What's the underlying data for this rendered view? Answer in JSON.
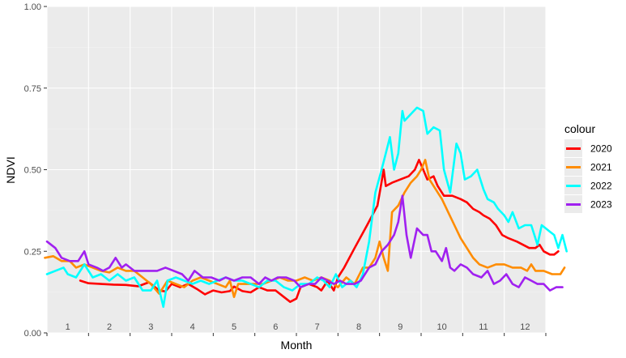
{
  "chart_data": {
    "type": "line",
    "xlabel": "Month",
    "ylabel": "NDVI",
    "xlim": [
      0,
      12
    ],
    "ylim": [
      0,
      1
    ],
    "y_ticks": [
      0,
      0.25,
      0.5,
      0.75,
      1
    ],
    "y_tick_labels": [
      "0.00",
      "0.25",
      "0.50",
      "0.75",
      "1.00"
    ],
    "month_labels": [
      "1",
      "2",
      "3",
      "4",
      "5",
      "6",
      "7",
      "8",
      "9",
      "10",
      "11",
      "12"
    ],
    "legend": {
      "title": "colour",
      "position": "right"
    },
    "grid": true,
    "series": [
      {
        "name": "2020",
        "color": "#ff0000",
        "points": [
          [
            0.8,
            0.16
          ],
          [
            1.0,
            0.152
          ],
          [
            1.3,
            0.15
          ],
          [
            1.6,
            0.148
          ],
          [
            1.9,
            0.147
          ],
          [
            2.2,
            0.143
          ],
          [
            2.45,
            0.155
          ],
          [
            2.7,
            0.13
          ],
          [
            2.85,
            0.127
          ],
          [
            3.0,
            0.15
          ],
          [
            3.2,
            0.14
          ],
          [
            3.4,
            0.15
          ],
          [
            3.6,
            0.135
          ],
          [
            3.8,
            0.118
          ],
          [
            4.0,
            0.13
          ],
          [
            4.2,
            0.124
          ],
          [
            4.4,
            0.128
          ],
          [
            4.5,
            0.142
          ],
          [
            4.7,
            0.128
          ],
          [
            4.9,
            0.124
          ],
          [
            5.1,
            0.14
          ],
          [
            5.3,
            0.13
          ],
          [
            5.5,
            0.13
          ],
          [
            5.7,
            0.11
          ],
          [
            5.85,
            0.095
          ],
          [
            6.0,
            0.105
          ],
          [
            6.1,
            0.14
          ],
          [
            6.3,
            0.15
          ],
          [
            6.5,
            0.14
          ],
          [
            6.6,
            0.13
          ],
          [
            6.75,
            0.16
          ],
          [
            6.9,
            0.13
          ],
          [
            7.0,
            0.17
          ],
          [
            7.15,
            0.2
          ],
          [
            7.4,
            0.26
          ],
          [
            7.7,
            0.33
          ],
          [
            7.95,
            0.39
          ],
          [
            8.1,
            0.5
          ],
          [
            8.15,
            0.45
          ],
          [
            8.3,
            0.46
          ],
          [
            8.5,
            0.47
          ],
          [
            8.7,
            0.48
          ],
          [
            8.85,
            0.5
          ],
          [
            8.95,
            0.53
          ],
          [
            9.05,
            0.5
          ],
          [
            9.15,
            0.47
          ],
          [
            9.3,
            0.48
          ],
          [
            9.4,
            0.45
          ],
          [
            9.55,
            0.42
          ],
          [
            9.75,
            0.42
          ],
          [
            9.95,
            0.41
          ],
          [
            10.1,
            0.4
          ],
          [
            10.25,
            0.38
          ],
          [
            10.4,
            0.37
          ],
          [
            10.5,
            0.36
          ],
          [
            10.65,
            0.35
          ],
          [
            10.8,
            0.33
          ],
          [
            10.95,
            0.3
          ],
          [
            11.1,
            0.29
          ],
          [
            11.3,
            0.28
          ],
          [
            11.45,
            0.27
          ],
          [
            11.6,
            0.26
          ],
          [
            11.75,
            0.26
          ],
          [
            11.85,
            0.27
          ],
          [
            11.95,
            0.25
          ],
          [
            12.1,
            0.24
          ],
          [
            12.2,
            0.24
          ],
          [
            12.3,
            0.25
          ]
        ]
      },
      {
        "name": "2021",
        "color": "#ff8c00",
        "points": [
          [
            -0.05,
            0.23
          ],
          [
            0.15,
            0.235
          ],
          [
            0.35,
            0.22
          ],
          [
            0.55,
            0.22
          ],
          [
            0.7,
            0.2
          ],
          [
            0.9,
            0.21
          ],
          [
            1.1,
            0.2
          ],
          [
            1.3,
            0.19
          ],
          [
            1.5,
            0.185
          ],
          [
            1.7,
            0.2
          ],
          [
            1.9,
            0.19
          ],
          [
            2.1,
            0.19
          ],
          [
            2.3,
            0.17
          ],
          [
            2.5,
            0.15
          ],
          [
            2.7,
            0.12
          ],
          [
            2.9,
            0.16
          ],
          [
            3.1,
            0.15
          ],
          [
            3.3,
            0.14
          ],
          [
            3.5,
            0.16
          ],
          [
            3.7,
            0.17
          ],
          [
            3.9,
            0.16
          ],
          [
            4.1,
            0.15
          ],
          [
            4.3,
            0.14
          ],
          [
            4.4,
            0.16
          ],
          [
            4.5,
            0.11
          ],
          [
            4.6,
            0.15
          ],
          [
            4.8,
            0.15
          ],
          [
            5.0,
            0.15
          ],
          [
            5.2,
            0.15
          ],
          [
            5.4,
            0.16
          ],
          [
            5.6,
            0.17
          ],
          [
            5.8,
            0.16
          ],
          [
            6.0,
            0.16
          ],
          [
            6.2,
            0.17
          ],
          [
            6.4,
            0.16
          ],
          [
            6.6,
            0.17
          ],
          [
            6.8,
            0.16
          ],
          [
            7.0,
            0.14
          ],
          [
            7.2,
            0.17
          ],
          [
            7.4,
            0.15
          ],
          [
            7.6,
            0.2
          ],
          [
            7.75,
            0.2
          ],
          [
            7.9,
            0.23
          ],
          [
            8.0,
            0.28
          ],
          [
            8.1,
            0.23
          ],
          [
            8.2,
            0.19
          ],
          [
            8.3,
            0.37
          ],
          [
            8.45,
            0.39
          ],
          [
            8.6,
            0.43
          ],
          [
            8.75,
            0.46
          ],
          [
            8.9,
            0.48
          ],
          [
            9.0,
            0.5
          ],
          [
            9.1,
            0.53
          ],
          [
            9.2,
            0.47
          ],
          [
            9.35,
            0.44
          ],
          [
            9.5,
            0.41
          ],
          [
            9.65,
            0.37
          ],
          [
            9.8,
            0.33
          ],
          [
            9.95,
            0.29
          ],
          [
            10.1,
            0.26
          ],
          [
            10.25,
            0.23
          ],
          [
            10.4,
            0.21
          ],
          [
            10.6,
            0.2
          ],
          [
            10.8,
            0.21
          ],
          [
            11.0,
            0.21
          ],
          [
            11.2,
            0.2
          ],
          [
            11.4,
            0.2
          ],
          [
            11.55,
            0.19
          ],
          [
            11.65,
            0.21
          ],
          [
            11.75,
            0.19
          ],
          [
            11.95,
            0.19
          ],
          [
            12.15,
            0.18
          ],
          [
            12.35,
            0.18
          ],
          [
            12.45,
            0.2
          ]
        ]
      },
      {
        "name": "2022",
        "color": "#00ffff",
        "points": [
          [
            0.0,
            0.18
          ],
          [
            0.2,
            0.19
          ],
          [
            0.4,
            0.2
          ],
          [
            0.5,
            0.18
          ],
          [
            0.7,
            0.17
          ],
          [
            0.9,
            0.21
          ],
          [
            1.1,
            0.17
          ],
          [
            1.3,
            0.18
          ],
          [
            1.5,
            0.16
          ],
          [
            1.7,
            0.18
          ],
          [
            1.9,
            0.16
          ],
          [
            2.1,
            0.17
          ],
          [
            2.3,
            0.13
          ],
          [
            2.5,
            0.13
          ],
          [
            2.65,
            0.16
          ],
          [
            2.8,
            0.08
          ],
          [
            2.9,
            0.16
          ],
          [
            3.1,
            0.17
          ],
          [
            3.3,
            0.16
          ],
          [
            3.5,
            0.15
          ],
          [
            3.7,
            0.16
          ],
          [
            3.9,
            0.15
          ],
          [
            4.1,
            0.16
          ],
          [
            4.3,
            0.17
          ],
          [
            4.5,
            0.16
          ],
          [
            4.7,
            0.16
          ],
          [
            4.9,
            0.15
          ],
          [
            5.1,
            0.14
          ],
          [
            5.3,
            0.16
          ],
          [
            5.5,
            0.16
          ],
          [
            5.7,
            0.14
          ],
          [
            5.9,
            0.13
          ],
          [
            6.1,
            0.15
          ],
          [
            6.3,
            0.15
          ],
          [
            6.5,
            0.17
          ],
          [
            6.65,
            0.16
          ],
          [
            6.8,
            0.14
          ],
          [
            6.95,
            0.18
          ],
          [
            7.1,
            0.14
          ],
          [
            7.3,
            0.16
          ],
          [
            7.45,
            0.14
          ],
          [
            7.6,
            0.18
          ],
          [
            7.75,
            0.28
          ],
          [
            7.9,
            0.43
          ],
          [
            8.05,
            0.5
          ],
          [
            8.15,
            0.55
          ],
          [
            8.25,
            0.6
          ],
          [
            8.35,
            0.5
          ],
          [
            8.45,
            0.55
          ],
          [
            8.55,
            0.68
          ],
          [
            8.6,
            0.65
          ],
          [
            8.75,
            0.67
          ],
          [
            8.9,
            0.69
          ],
          [
            9.05,
            0.68
          ],
          [
            9.15,
            0.61
          ],
          [
            9.3,
            0.63
          ],
          [
            9.45,
            0.62
          ],
          [
            9.55,
            0.5
          ],
          [
            9.7,
            0.43
          ],
          [
            9.85,
            0.58
          ],
          [
            9.95,
            0.55
          ],
          [
            10.05,
            0.47
          ],
          [
            10.2,
            0.48
          ],
          [
            10.35,
            0.5
          ],
          [
            10.5,
            0.44
          ],
          [
            10.6,
            0.41
          ],
          [
            10.75,
            0.4
          ],
          [
            10.85,
            0.38
          ],
          [
            11.0,
            0.36
          ],
          [
            11.1,
            0.34
          ],
          [
            11.2,
            0.37
          ],
          [
            11.35,
            0.32
          ],
          [
            11.5,
            0.33
          ],
          [
            11.65,
            0.33
          ],
          [
            11.8,
            0.27
          ],
          [
            11.9,
            0.33
          ],
          [
            12.0,
            0.32
          ],
          [
            12.1,
            0.31
          ],
          [
            12.2,
            0.3
          ],
          [
            12.3,
            0.26
          ],
          [
            12.4,
            0.3
          ],
          [
            12.5,
            0.25
          ]
        ]
      },
      {
        "name": "2023",
        "color": "#a020f0",
        "points": [
          [
            0.0,
            0.28
          ],
          [
            0.2,
            0.26
          ],
          [
            0.35,
            0.23
          ],
          [
            0.55,
            0.22
          ],
          [
            0.75,
            0.22
          ],
          [
            0.9,
            0.25
          ],
          [
            1.0,
            0.21
          ],
          [
            1.2,
            0.2
          ],
          [
            1.35,
            0.19
          ],
          [
            1.5,
            0.2
          ],
          [
            1.65,
            0.23
          ],
          [
            1.8,
            0.2
          ],
          [
            1.9,
            0.21
          ],
          [
            2.1,
            0.19
          ],
          [
            2.25,
            0.19
          ],
          [
            2.45,
            0.19
          ],
          [
            2.65,
            0.19
          ],
          [
            2.85,
            0.2
          ],
          [
            3.05,
            0.19
          ],
          [
            3.25,
            0.18
          ],
          [
            3.4,
            0.16
          ],
          [
            3.55,
            0.19
          ],
          [
            3.75,
            0.17
          ],
          [
            3.95,
            0.17
          ],
          [
            4.15,
            0.16
          ],
          [
            4.3,
            0.17
          ],
          [
            4.5,
            0.16
          ],
          [
            4.7,
            0.17
          ],
          [
            4.9,
            0.17
          ],
          [
            5.1,
            0.15
          ],
          [
            5.25,
            0.17
          ],
          [
            5.4,
            0.16
          ],
          [
            5.55,
            0.17
          ],
          [
            5.75,
            0.17
          ],
          [
            5.95,
            0.16
          ],
          [
            6.1,
            0.14
          ],
          [
            6.3,
            0.15
          ],
          [
            6.45,
            0.15
          ],
          [
            6.6,
            0.17
          ],
          [
            6.75,
            0.16
          ],
          [
            6.9,
            0.15
          ],
          [
            7.05,
            0.16
          ],
          [
            7.2,
            0.15
          ],
          [
            7.4,
            0.15
          ],
          [
            7.55,
            0.16
          ],
          [
            7.75,
            0.2
          ],
          [
            7.9,
            0.21
          ],
          [
            8.05,
            0.25
          ],
          [
            8.2,
            0.27
          ],
          [
            8.35,
            0.3
          ],
          [
            8.45,
            0.34
          ],
          [
            8.55,
            0.42
          ],
          [
            8.65,
            0.3
          ],
          [
            8.75,
            0.23
          ],
          [
            8.9,
            0.32
          ],
          [
            9.05,
            0.3
          ],
          [
            9.15,
            0.3
          ],
          [
            9.25,
            0.25
          ],
          [
            9.35,
            0.25
          ],
          [
            9.5,
            0.22
          ],
          [
            9.6,
            0.26
          ],
          [
            9.7,
            0.2
          ],
          [
            9.8,
            0.19
          ],
          [
            9.95,
            0.21
          ],
          [
            10.1,
            0.2
          ],
          [
            10.25,
            0.18
          ],
          [
            10.45,
            0.17
          ],
          [
            10.6,
            0.19
          ],
          [
            10.75,
            0.15
          ],
          [
            10.9,
            0.16
          ],
          [
            11.05,
            0.18
          ],
          [
            11.2,
            0.15
          ],
          [
            11.35,
            0.14
          ],
          [
            11.5,
            0.17
          ],
          [
            11.65,
            0.16
          ],
          [
            11.8,
            0.15
          ],
          [
            11.95,
            0.15
          ],
          [
            12.1,
            0.13
          ],
          [
            12.25,
            0.14
          ],
          [
            12.4,
            0.14
          ]
        ]
      }
    ]
  }
}
